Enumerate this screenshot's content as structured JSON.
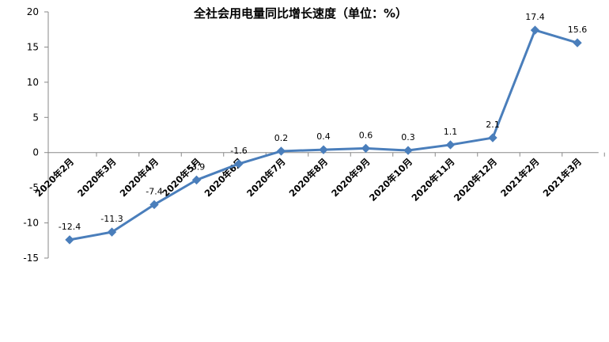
{
  "chart_data": {
    "type": "line",
    "title": "全社会用电量同比增长速度（单位：%）",
    "categories": [
      "2020年2月",
      "2020年3月",
      "2020年4月",
      "2020年5月",
      "2020年6月",
      "2020年7月",
      "2020年8月",
      "2020年9月",
      "2020年10月",
      "2020年11月",
      "2020年12月",
      "2021年2月",
      "2021年3月"
    ],
    "series": [
      {
        "values": [
          -12.4,
          -11.3,
          -7.4,
          -3.9,
          -1.6,
          0.2,
          0.4,
          0.6,
          0.3,
          1.1,
          2.1,
          17.4,
          15.6
        ],
        "labels": [
          "-12.4",
          "-11.3",
          "-7.4",
          "-3.9",
          "-1.6",
          "0.2",
          "0.4",
          "0.6",
          "0.3",
          "1.1",
          "2.1",
          "17.4",
          "15.6"
        ],
        "color": "#4a7ebb"
      }
    ],
    "ylim": [
      -15,
      20
    ],
    "yticks": [
      "20",
      "15",
      "10",
      "5",
      "0",
      "-5",
      "-10",
      "-15"
    ],
    "grid": false,
    "legend": "none"
  }
}
